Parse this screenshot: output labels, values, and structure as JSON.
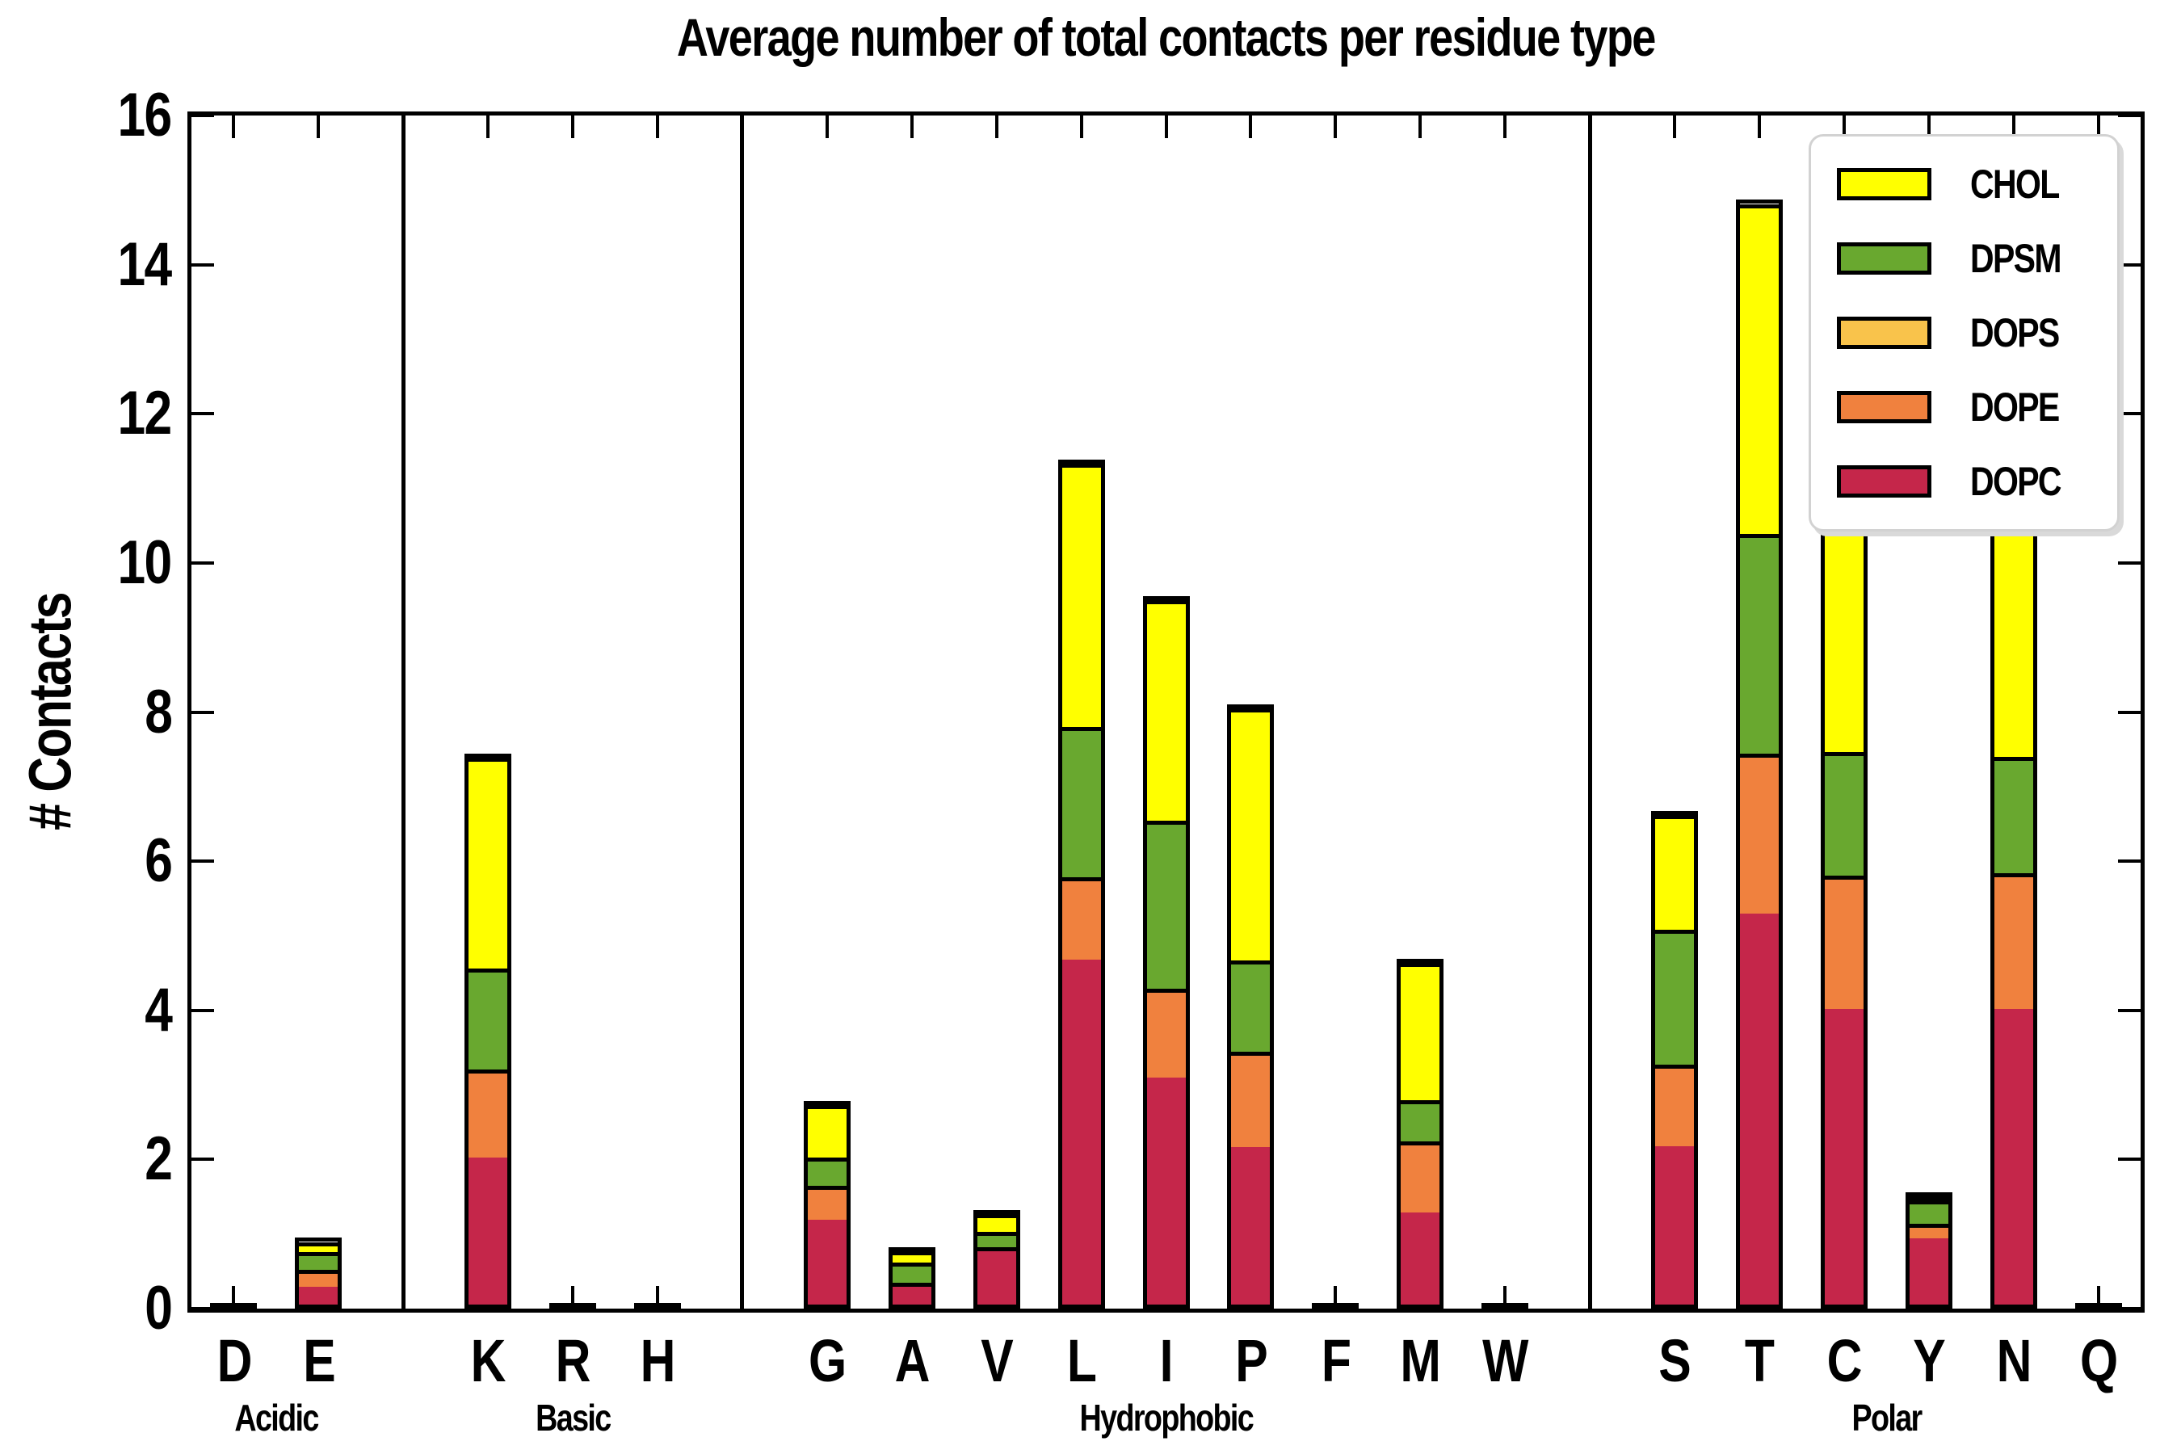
{
  "chart_data": {
    "type": "bar",
    "stacked": true,
    "title": "Average number of total contacts per residue type",
    "ylabel": "# Contacts",
    "xlabel": "",
    "ylim": [
      0,
      16
    ],
    "yticks": [
      "0",
      "2",
      "4",
      "6",
      "8",
      "10",
      "12",
      "14",
      "16"
    ],
    "ytick_values": [
      0,
      2,
      4,
      6,
      8,
      10,
      12,
      14,
      16
    ],
    "grid": false,
    "legend_position": "upper right",
    "stack_order_bottom_to_top": [
      "DOPC",
      "DOPE",
      "DOPS",
      "DPSM",
      "CHOL"
    ],
    "legend": [
      {
        "label": "CHOL",
        "color": "#FFFF00"
      },
      {
        "label": "DPSM",
        "color": "#69A82F"
      },
      {
        "label": "DOPS",
        "color": "#F9C34B"
      },
      {
        "label": "DOPE",
        "color": "#F0813E"
      },
      {
        "label": "DOPC",
        "color": "#C5264A"
      }
    ],
    "groups": [
      {
        "label": "Acidic",
        "residues": [
          {
            "label": "D",
            "values": {
              "DOPC": 0.02,
              "DOPE": 0,
              "DOPS": 0,
              "DPSM": 0,
              "CHOL": 0
            }
          },
          {
            "label": "E",
            "values": {
              "DOPC": 0.24,
              "DOPE": 0.23,
              "DOPS": 0,
              "DPSM": 0.24,
              "CHOL": 0.13
            }
          }
        ]
      },
      {
        "label": "Basic",
        "residues": [
          {
            "label": "K",
            "values": {
              "DOPC": 1.97,
              "DOPE": 1.18,
              "DOPS": 0,
              "DPSM": 1.36,
              "CHOL": 2.82
            }
          },
          {
            "label": "R",
            "values": {
              "DOPC": 0.02,
              "DOPE": 0,
              "DOPS": 0,
              "DPSM": 0,
              "CHOL": 0
            }
          },
          {
            "label": "H",
            "values": {
              "DOPC": 0.02,
              "DOPE": 0,
              "DOPS": 0,
              "DPSM": 0,
              "CHOL": 0
            }
          }
        ]
      },
      {
        "label": "Hydrophobic",
        "residues": [
          {
            "label": "G",
            "values": {
              "DOPC": 1.14,
              "DOPE": 0.45,
              "DOPS": 0,
              "DPSM": 0.38,
              "CHOL": 0.71
            }
          },
          {
            "label": "A",
            "values": {
              "DOPC": 0.25,
              "DOPE": 0.04,
              "DOPS": 0,
              "DPSM": 0.27,
              "CHOL": 0.16
            }
          },
          {
            "label": "V",
            "values": {
              "DOPC": 0.71,
              "DOPE": 0.06,
              "DOPS": 0,
              "DPSM": 0.2,
              "CHOL": 0.24
            }
          },
          {
            "label": "L",
            "values": {
              "DOPC": 4.63,
              "DOPE": 1.1,
              "DOPS": 0,
              "DPSM": 2.02,
              "CHOL": 3.53
            }
          },
          {
            "label": "I",
            "values": {
              "DOPC": 3.04,
              "DOPE": 1.2,
              "DOPS": 0,
              "DPSM": 2.25,
              "CHOL": 2.96
            }
          },
          {
            "label": "P",
            "values": {
              "DOPC": 2.11,
              "DOPE": 1.28,
              "DOPS": 0,
              "DPSM": 1.22,
              "CHOL": 3.39
            }
          },
          {
            "label": "F",
            "values": {
              "DOPC": 0.02,
              "DOPE": 0,
              "DOPS": 0,
              "DPSM": 0,
              "CHOL": 0
            }
          },
          {
            "label": "M",
            "values": {
              "DOPC": 1.24,
              "DOPE": 0.95,
              "DOPS": 0,
              "DPSM": 0.55,
              "CHOL": 1.84
            }
          },
          {
            "label": "W",
            "values": {
              "DOPC": 0.02,
              "DOPE": 0,
              "DOPS": 0,
              "DPSM": 0,
              "CHOL": 0
            }
          }
        ]
      },
      {
        "label": "Polar",
        "residues": [
          {
            "label": "S",
            "values": {
              "DOPC": 2.12,
              "DOPE": 1.1,
              "DOPS": 0,
              "DPSM": 1.81,
              "CHOL": 1.53
            }
          },
          {
            "label": "T",
            "values": {
              "DOPC": 5.24,
              "DOPE": 2.15,
              "DOPS": 0,
              "DPSM": 2.94,
              "CHOL": 4.43
            }
          },
          {
            "label": "C",
            "values": {
              "DOPC": 3.97,
              "DOPE": 1.78,
              "DOPS": 0,
              "DPSM": 1.66,
              "CHOL": 3.27
            }
          },
          {
            "label": "Y",
            "values": {
              "DOPC": 0.9,
              "DOPE": 0.19,
              "DOPS": 0,
              "DPSM": 0.32,
              "CHOL": 0.04
            }
          },
          {
            "label": "N",
            "values": {
              "DOPC": 3.96,
              "DOPE": 1.83,
              "DOPS": 0,
              "DPSM": 1.55,
              "CHOL": 3.42
            }
          },
          {
            "label": "Q",
            "values": {
              "DOPC": 0.02,
              "DOPE": 0,
              "DOPS": 0,
              "DPSM": 0,
              "CHOL": 0
            }
          }
        ]
      }
    ]
  }
}
